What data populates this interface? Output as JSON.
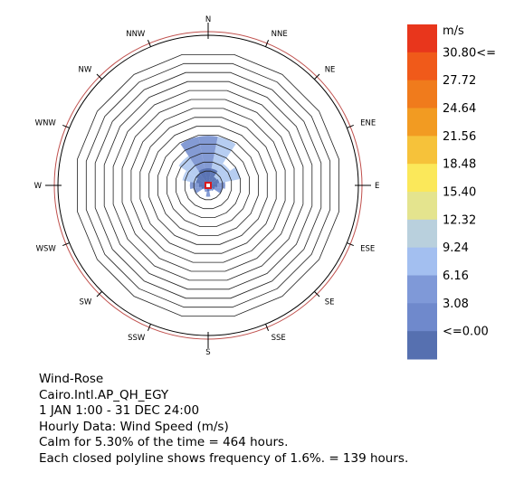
{
  "chart_data": {
    "type": "wind-rose",
    "directions": [
      "N",
      "NNE",
      "NE",
      "ENE",
      "E",
      "ESE",
      "SE",
      "SSE",
      "S",
      "SSW",
      "SW",
      "WSW",
      "W",
      "WNW",
      "NW",
      "NNW"
    ],
    "ring_step_percent": 1.6,
    "ring_count": 14,
    "frequency_percent": [
      8.7,
      8.7,
      4.6,
      5.8,
      3.0,
      2.6,
      1.2,
      1.0,
      2.0,
      1.2,
      1.0,
      2.6,
      3.2,
      4.6,
      6.2,
      8.7
    ],
    "inner_band_percent": [
      3.0,
      3.0,
      1.8,
      2.0,
      1.6,
      1.2,
      0.8,
      0.6,
      1.0,
      0.7,
      0.6,
      1.2,
      1.6,
      2.2,
      2.6,
      3.0
    ],
    "legend": {
      "unit": "m/s",
      "labels": [
        "30.80<=",
        "27.72",
        "24.64",
        "21.56",
        "18.48",
        "15.40",
        "12.32",
        "9.24",
        "6.16",
        "3.08",
        "<=0.00"
      ],
      "colors": [
        "#e8361c",
        "#f05a1a",
        "#f07b1c",
        "#f29b22",
        "#f6c23a",
        "#fbe85a",
        "#e4e48e",
        "#b9d0dd",
        "#a3bff0",
        "#7f99d8",
        "#6f89cc",
        "#5670b0"
      ]
    },
    "colors": {
      "petal_outer": "#6f89cc",
      "petal_outer_light": "#a9c4ee",
      "petal_inner": "#5670b0",
      "calm_marker": "#d7191c"
    }
  },
  "caption": {
    "line1": "Wind-Rose",
    "line2": "Cairo.Intl.AP_QH_EGY",
    "line3": "1 JAN 1:00 - 31 DEC 24:00",
    "line4": "Hourly Data: Wind Speed (m/s)",
    "line5": "Calm for 5.30% of the time = 464 hours.",
    "line6": "Each closed polyline shows frequency of 1.6%. = 139 hours."
  }
}
